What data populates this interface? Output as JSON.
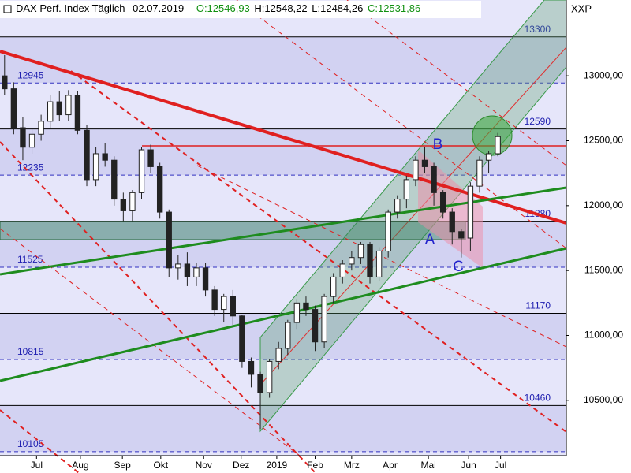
{
  "chart_data": {
    "type": "candlestick",
    "title": "DAX Perf. Index Täglich",
    "date": "02.07.2019",
    "ohlc_labels": {
      "open": "O:12546,93",
      "high": "H:12548,22",
      "low": "L:12484,26",
      "close": "C:12531,86"
    },
    "symbol": "XXP",
    "annotations": [
      {
        "text": "A"
      },
      {
        "text": "B"
      },
      {
        "text": "C"
      }
    ],
    "color": "#222222",
    "up_fill": "#ffffff",
    "down_fill": "#222222",
    "open": [
      13000,
      12900,
      12600,
      12450,
      12550,
      12650,
      12800,
      12700,
      12850,
      12580,
      12200,
      12400,
      12350,
      12050,
      11960,
      12100,
      12430,
      12300,
      11950,
      11520,
      11550,
      11450,
      11520,
      11350,
      11200,
      11300,
      11150,
      10800,
      10700,
      10560,
      10800,
      10900,
      11100,
      11250,
      11200,
      10950,
      11300,
      11450,
      11550,
      11600,
      11700,
      11450,
      11650,
      11950,
      12050,
      12200,
      12350,
      12300,
      12100,
      11950,
      11800,
      11750,
      12150,
      12350,
      12400
    ],
    "high": [
      13160,
      12950,
      12680,
      12600,
      12700,
      12850,
      12880,
      12890,
      12880,
      12620,
      12450,
      12480,
      12380,
      12100,
      12120,
      12450,
      12470,
      12330,
      11970,
      11620,
      11640,
      11560,
      11560,
      11380,
      11320,
      11350,
      11160,
      10830,
      10720,
      10820,
      10950,
      11120,
      11280,
      11300,
      11230,
      11320,
      11480,
      11580,
      11650,
      11720,
      11720,
      11680,
      11970,
      12080,
      12230,
      12380,
      12450,
      12330,
      12120,
      11980,
      11820,
      12180,
      12380,
      12420,
      12560
    ],
    "low": [
      12850,
      12550,
      12350,
      12400,
      12500,
      12600,
      12650,
      12650,
      12550,
      12150,
      12150,
      12300,
      12000,
      11880,
      11880,
      12050,
      12250,
      11900,
      11450,
      11430,
      11380,
      11380,
      11300,
      11150,
      11100,
      11080,
      10750,
      10600,
      10280,
      10520,
      10740,
      10850,
      11050,
      11150,
      10880,
      10900,
      11250,
      11400,
      11500,
      11550,
      11400,
      11420,
      11600,
      11900,
      11980,
      12150,
      12250,
      12000,
      11900,
      11700,
      11600,
      11650,
      12100,
      12250,
      12380
    ],
    "close": [
      12900,
      12600,
      12450,
      12550,
      12650,
      12800,
      12700,
      12850,
      12580,
      12200,
      12400,
      12350,
      12050,
      11960,
      12100,
      12430,
      12300,
      11950,
      11520,
      11550,
      11450,
      11520,
      11350,
      11200,
      11300,
      11150,
      10800,
      10700,
      10560,
      10800,
      10900,
      11100,
      11250,
      11200,
      10950,
      11300,
      11450,
      11550,
      11600,
      11700,
      11450,
      11650,
      11950,
      12050,
      12200,
      12350,
      12300,
      12100,
      11950,
      11800,
      11750,
      12150,
      12350,
      12400,
      12531.86
    ],
    "xlim": [
      -0.5,
      61.5
    ],
    "xticks": [
      {
        "value": 3.5,
        "label": "Jul"
      },
      {
        "value": 8.3,
        "label": "Aug"
      },
      {
        "value": 12.9,
        "label": "Sep"
      },
      {
        "value": 17.1,
        "label": "Okt"
      },
      {
        "value": 21.8,
        "label": "Nov"
      },
      {
        "value": 25.9,
        "label": "Dez"
      },
      {
        "value": 29.8,
        "label": "2019"
      },
      {
        "value": 34.0,
        "label": "Feb"
      },
      {
        "value": 38.0,
        "label": "Mrz"
      },
      {
        "value": 42.2,
        "label": "Apr"
      },
      {
        "value": 46.4,
        "label": "Mai"
      },
      {
        "value": 50.8,
        "label": "Jun"
      },
      {
        "value": 54.3,
        "label": "Jul"
      }
    ],
    "ylim": [
      10080,
      13584
    ],
    "yticks": [
      {
        "value": 10500,
        "label": "10500,00"
      },
      {
        "value": 11000,
        "label": "11000,00"
      },
      {
        "value": 11500,
        "label": "11500,00"
      },
      {
        "value": 12000,
        "label": "12000,00"
      },
      {
        "value": 12500,
        "label": "12500,00"
      },
      {
        "value": 13000,
        "label": "13000,00"
      }
    ],
    "levels": [
      {
        "value": 13300,
        "style": "solid"
      },
      {
        "value": 12945,
        "style": "dashed"
      },
      {
        "value": 12590,
        "style": "solid"
      },
      {
        "value": 12235,
        "style": "dashed"
      },
      {
        "value": 11880,
        "style": "solid"
      },
      {
        "value": 11525,
        "style": "dashed"
      },
      {
        "value": 11170,
        "style": "solid"
      },
      {
        "value": 10815,
        "style": "dashed"
      },
      {
        "value": 10460,
        "style": "solid"
      },
      {
        "value": 10105,
        "style": "dashed"
      }
    ]
  }
}
